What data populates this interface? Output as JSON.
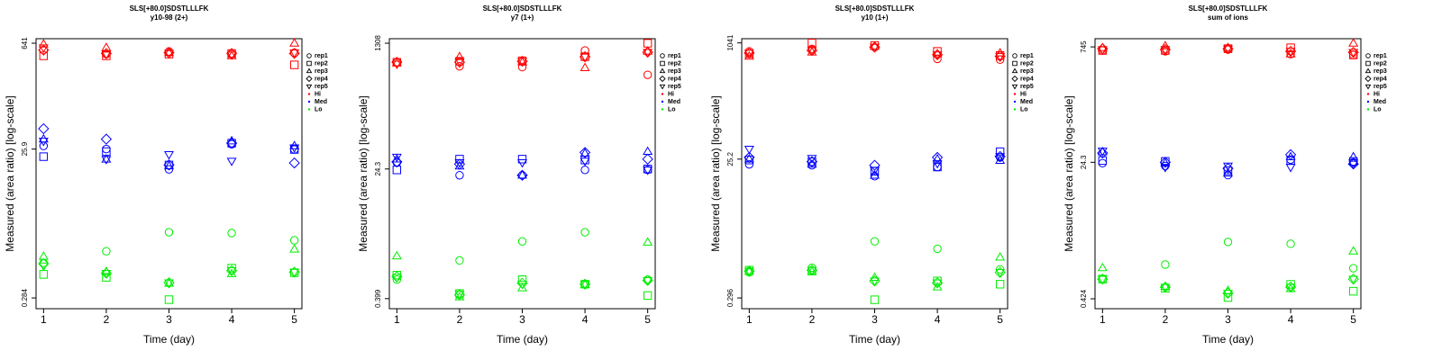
{
  "chart_data": [
    {
      "type": "scatter",
      "title": "SLS[+80.0]SDSTLLLFK",
      "subtitle": "y10-98 (2+)",
      "xlabel": "Time (day)",
      "ylabel": "Measured (area ratio) [log-scale]",
      "x": [
        1,
        2,
        3,
        4,
        5
      ],
      "xlim": [
        0.88,
        5.12
      ],
      "xticks": [
        1,
        2,
        3,
        4,
        5
      ],
      "ylim": [
        0.205,
        735
      ],
      "yticks": [
        0.284,
        25.9,
        641
      ],
      "log_y": true,
      "legend": {
        "reps": [
          "rep1",
          "rep2",
          "rep3",
          "rep4",
          "rep5"
        ],
        "groups": [
          {
            "name": "Hi",
            "color": "#ff0000"
          },
          {
            "name": "Med",
            "color": "#0000ff"
          },
          {
            "name": "Lo",
            "color": "#00ee00"
          }
        ]
      },
      "series": [
        {
          "name": "rep1",
          "group": "Hi",
          "color": "#ff0000",
          "values": [
            520,
            460,
            500,
            460,
            480
          ]
        },
        {
          "name": "rep2",
          "group": "Hi",
          "color": "#ff0000",
          "values": [
            437,
            437,
            460,
            470,
            333
          ]
        },
        {
          "name": "rep3",
          "group": "Hi",
          "color": "#ff0000",
          "values": [
            622,
            560,
            480,
            437,
            640
          ]
        },
        {
          "name": "rep4",
          "group": "Hi",
          "color": "#ff0000",
          "values": [
            520,
            470,
            480,
            470,
            470
          ]
        },
        {
          "name": "rep5",
          "group": "Hi",
          "color": "#ff0000",
          "values": [
            560,
            460,
            470,
            450,
            480
          ]
        },
        {
          "name": "rep1",
          "group": "Med",
          "color": "#0000ff",
          "values": [
            28.5,
            25.9,
            14,
            30,
            25.6
          ]
        },
        {
          "name": "rep2",
          "group": "Med",
          "color": "#0000ff",
          "values": [
            20.6,
            24,
            16,
            31,
            25.6
          ]
        },
        {
          "name": "rep3",
          "group": "Med",
          "color": "#0000ff",
          "values": [
            35,
            19,
            15.5,
            33,
            28.5
          ]
        },
        {
          "name": "rep4",
          "group": "Med",
          "color": "#0000ff",
          "values": [
            48,
            35,
            16,
            31,
            17
          ]
        },
        {
          "name": "rep5",
          "group": "Med",
          "color": "#0000ff",
          "values": [
            33,
            19,
            22,
            18,
            27
          ]
        },
        {
          "name": "rep1",
          "group": "Lo",
          "color": "#00ee00",
          "values": [
            0.82,
            1.17,
            2.08,
            2.03,
            1.63
          ]
        },
        {
          "name": "rep2",
          "group": "Lo",
          "color": "#00ee00",
          "values": [
            0.58,
            0.53,
            0.27,
            0.7,
            0.61
          ]
        },
        {
          "name": "rep3",
          "group": "Lo",
          "color": "#00ee00",
          "values": [
            1.0,
            0.63,
            0.44,
            0.59,
            1.24
          ]
        },
        {
          "name": "rep4",
          "group": "Lo",
          "color": "#00ee00",
          "values": [
            0.8,
            0.6,
            0.45,
            0.65,
            0.62
          ]
        },
        {
          "name": "rep5",
          "group": "Lo",
          "color": "#00ee00",
          "values": [
            0.75,
            0.6,
            0.45,
            0.65,
            0.62
          ]
        }
      ]
    },
    {
      "type": "scatter",
      "title": "SLS[+80.0]SDSTLLLFK",
      "subtitle": "y7 (1+)",
      "xlabel": "Time (day)",
      "ylabel": "Measured (area ratio) [log-scale]",
      "x": [
        1,
        2,
        3,
        4,
        5
      ],
      "xlim": [
        0.88,
        5.12
      ],
      "xticks": [
        1,
        2,
        3,
        4,
        5
      ],
      "ylim": [
        0.29,
        1510
      ],
      "yticks": [
        0.399,
        24.3,
        1308
      ],
      "log_y": true,
      "legend": {
        "reps": [
          "rep1",
          "rep2",
          "rep3",
          "rep4",
          "rep5"
        ],
        "groups": [
          {
            "name": "Hi",
            "color": "#ff0000"
          },
          {
            "name": "Med",
            "color": "#0000ff"
          },
          {
            "name": "Lo",
            "color": "#00ee00"
          }
        ]
      },
      "series": [
        {
          "name": "rep1",
          "group": "Hi",
          "color": "#ff0000",
          "values": [
            716,
            630,
            615,
            1040,
            480
          ]
        },
        {
          "name": "rep2",
          "group": "Hi",
          "color": "#ff0000",
          "values": [
            716,
            738,
            750,
            851,
            1308
          ]
        },
        {
          "name": "rep3",
          "group": "Hi",
          "color": "#ff0000",
          "values": [
            700,
            851,
            716,
            600,
            1010
          ]
        },
        {
          "name": "rep4",
          "group": "Hi",
          "color": "#ff0000",
          "values": [
            716,
            716,
            738,
            851,
            984
          ]
        },
        {
          "name": "rep5",
          "group": "Hi",
          "color": "#ff0000",
          "values": [
            677,
            738,
            738,
            851,
            984
          ]
        },
        {
          "name": "rep1",
          "group": "Med",
          "color": "#0000ff",
          "values": [
            29.8,
            19.9,
            19.9,
            23.6,
            23.6
          ]
        },
        {
          "name": "rep2",
          "group": "Med",
          "color": "#0000ff",
          "values": [
            23.6,
            33.2,
            33.2,
            32.3,
            24.3
          ]
        },
        {
          "name": "rep3",
          "group": "Med",
          "color": "#0000ff",
          "values": [
            33.2,
            26.6,
            19.9,
            39.9,
            42.2
          ]
        },
        {
          "name": "rep4",
          "group": "Med",
          "color": "#0000ff",
          "values": [
            30.4,
            28.3,
            19.9,
            41,
            33.2
          ]
        },
        {
          "name": "rep5",
          "group": "Med",
          "color": "#0000ff",
          "values": [
            35.5,
            29.8,
            29.8,
            31.3,
            23.6
          ]
        },
        {
          "name": "rep1",
          "group": "Lo",
          "color": "#00ee00",
          "values": [
            0.73,
            1.34,
            2.45,
            3.27,
            0.73
          ]
        },
        {
          "name": "rep2",
          "group": "Lo",
          "color": "#00ee00",
          "values": [
            0.84,
            0.47,
            0.73,
            0.63,
            0.44
          ]
        },
        {
          "name": "rep3",
          "group": "Lo",
          "color": "#00ee00",
          "values": [
            1.54,
            0.42,
            0.56,
            0.62,
            2.38
          ]
        },
        {
          "name": "rep4",
          "group": "Lo",
          "color": "#00ee00",
          "values": [
            0.8,
            0.45,
            0.65,
            0.63,
            0.71
          ]
        },
        {
          "name": "rep5",
          "group": "Lo",
          "color": "#00ee00",
          "values": [
            0.78,
            0.46,
            0.63,
            0.63,
            0.71
          ]
        }
      ]
    },
    {
      "type": "scatter",
      "title": "SLS[+80.0]SDSTLLLFK",
      "subtitle": "y10 (1+)",
      "xlabel": "Time (day)",
      "ylabel": "Measured (area ratio) [log-scale]",
      "x": [
        1,
        2,
        3,
        4,
        5
      ],
      "xlim": [
        0.88,
        5.12
      ],
      "xticks": [
        1,
        2,
        3,
        4,
        5
      ],
      "ylim": [
        0.21,
        1190
      ],
      "yticks": [
        0.296,
        25.2,
        1041
      ],
      "log_y": true,
      "legend": {
        "reps": [
          "rep1",
          "rep2",
          "rep3",
          "rep4",
          "rep5"
        ],
        "groups": [
          {
            "name": "Hi",
            "color": "#ff0000"
          },
          {
            "name": "Med",
            "color": "#0000ff"
          },
          {
            "name": "Lo",
            "color": "#00ee00"
          }
        ]
      },
      "series": [
        {
          "name": "rep1",
          "group": "Hi",
          "color": "#ff0000",
          "values": [
            794,
            859,
            908,
            624,
            609
          ]
        },
        {
          "name": "rep2",
          "group": "Hi",
          "color": "#ff0000",
          "values": [
            733,
            1041,
            956,
            794,
            696
          ]
        },
        {
          "name": "rep3",
          "group": "Hi",
          "color": "#ff0000",
          "values": [
            676,
            774,
            932,
            733,
            752
          ]
        },
        {
          "name": "rep4",
          "group": "Hi",
          "color": "#ff0000",
          "values": [
            752,
            816,
            908,
            713,
            676
          ]
        },
        {
          "name": "rep5",
          "group": "Hi",
          "color": "#ff0000",
          "values": [
            752,
            816,
            908,
            713,
            676
          ]
        },
        {
          "name": "rep1",
          "group": "Med",
          "color": "#0000ff",
          "values": [
            21.3,
            20.7,
            14.6,
            19.6,
            26.6
          ]
        },
        {
          "name": "rep2",
          "group": "Med",
          "color": "#0000ff",
          "values": [
            24.5,
            23.2,
            17.1,
            19.6,
            32
          ]
        },
        {
          "name": "rep3",
          "group": "Med",
          "color": "#0000ff",
          "values": [
            25.2,
            21.3,
            15,
            25.2,
            24.1
          ]
        },
        {
          "name": "rep4",
          "group": "Med",
          "color": "#0000ff",
          "values": [
            26.6,
            23.2,
            20.7,
            26.6,
            27.4
          ]
        },
        {
          "name": "rep5",
          "group": "Med",
          "color": "#0000ff",
          "values": [
            34.8,
            25.9,
            17.7,
            22,
            27.4
          ]
        },
        {
          "name": "rep1",
          "group": "Lo",
          "color": "#00ee00",
          "values": [
            0.67,
            0.78,
            1.81,
            1.43,
            0.74
          ]
        },
        {
          "name": "rep2",
          "group": "Lo",
          "color": "#00ee00",
          "values": [
            0.72,
            0.7,
            0.28,
            0.51,
            0.46
          ]
        },
        {
          "name": "rep3",
          "group": "Lo",
          "color": "#00ee00",
          "values": [
            0.69,
            0.69,
            0.57,
            0.42,
            1.09
          ]
        },
        {
          "name": "rep4",
          "group": "Lo",
          "color": "#00ee00",
          "values": [
            0.7,
            0.72,
            0.51,
            0.48,
            0.67
          ]
        },
        {
          "name": "rep5",
          "group": "Lo",
          "color": "#00ee00",
          "values": [
            0.7,
            0.72,
            0.51,
            0.48,
            0.67
          ]
        }
      ]
    },
    {
      "type": "scatter",
      "title": "SLS[+80.0]SDSTLLLFK",
      "subtitle": "sum of ions",
      "xlabel": "Time (day)",
      "ylabel": "Measured (area ratio) [log-scale]",
      "x": [
        1,
        2,
        3,
        4,
        5
      ],
      "xlim": [
        0.88,
        5.12
      ],
      "xticks": [
        1,
        2,
        3,
        4,
        5
      ],
      "ylim": [
        0.316,
        950
      ],
      "yticks": [
        0.424,
        24.3,
        745
      ],
      "log_y": true,
      "legend": {
        "reps": [
          "rep1",
          "rep2",
          "rep3",
          "rep4",
          "rep5"
        ],
        "groups": [
          {
            "name": "Hi",
            "color": "#ff0000"
          },
          {
            "name": "Med",
            "color": "#0000ff"
          },
          {
            "name": "Lo",
            "color": "#00ee00"
          }
        ]
      },
      "series": [
        {
          "name": "rep1",
          "group": "Hi",
          "color": "#ff0000",
          "values": [
            671,
            654,
            688,
            601,
            587
          ]
        },
        {
          "name": "rep2",
          "group": "Hi",
          "color": "#ff0000",
          "values": [
            671,
            671,
            706,
            725,
            587
          ]
        },
        {
          "name": "rep3",
          "group": "Hi",
          "color": "#ff0000",
          "values": [
            725,
            765,
            725,
            601,
            830
          ]
        },
        {
          "name": "rep4",
          "group": "Hi",
          "color": "#ff0000",
          "values": [
            706,
            688,
            706,
            654,
            634
          ]
        },
        {
          "name": "rep5",
          "group": "Hi",
          "color": "#ff0000",
          "values": [
            688,
            688,
            706,
            654,
            634
          ]
        },
        {
          "name": "rep1",
          "group": "Med",
          "color": "#0000ff",
          "values": [
            23.7,
            21.8,
            16.6,
            26.3,
            24.3
          ]
        },
        {
          "name": "rep2",
          "group": "Med",
          "color": "#0000ff",
          "values": [
            25.6,
            25,
            18.9,
            25.6,
            25
          ]
        },
        {
          "name": "rep3",
          "group": "Med",
          "color": "#0000ff",
          "values": [
            33,
            23.7,
            17.6,
            28.5,
            28.5
          ]
        },
        {
          "name": "rep4",
          "group": "Med",
          "color": "#0000ff",
          "values": [
            32,
            24.3,
            20.3,
            30.5,
            23.1
          ]
        },
        {
          "name": "rep5",
          "group": "Med",
          "color": "#0000ff",
          "values": [
            34,
            21,
            21.8,
            21,
            23.1
          ]
        },
        {
          "name": "rep1",
          "group": "Lo",
          "color": "#00ee00",
          "values": [
            0.76,
            1.17,
            2.29,
            2.17,
            1.05
          ]
        },
        {
          "name": "rep2",
          "group": "Lo",
          "color": "#00ee00",
          "values": [
            0.76,
            0.58,
            0.44,
            0.65,
            0.53
          ]
        },
        {
          "name": "rep3",
          "group": "Lo",
          "color": "#00ee00",
          "values": [
            1.06,
            0.61,
            0.54,
            0.57,
            1.74
          ]
        },
        {
          "name": "rep4",
          "group": "Lo",
          "color": "#00ee00",
          "values": [
            0.76,
            0.6,
            0.5,
            0.6,
            0.76
          ]
        },
        {
          "name": "rep5",
          "group": "Lo",
          "color": "#00ee00",
          "values": [
            0.76,
            0.6,
            0.5,
            0.6,
            0.76
          ]
        }
      ]
    }
  ]
}
